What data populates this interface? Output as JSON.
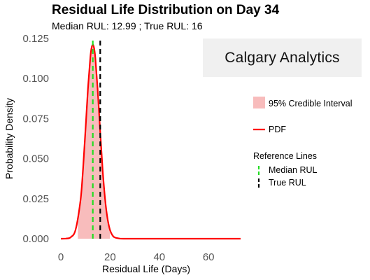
{
  "title": "Residual Life Distribution on Day 34",
  "subtitle": "Median RUL: 12.99 ; True RUL: 16",
  "brand": "Calgary Analytics",
  "chart_data": {
    "type": "area",
    "title": "Residual Life Distribution on Day 34",
    "subtitle": "Median RUL: 12.99 ; True RUL: 16",
    "xlabel": "Residual Life (Days)",
    "ylabel": "Probability Density",
    "xlim": [
      0,
      73
    ],
    "ylim": [
      0,
      0.125
    ],
    "x_ticks": [
      0,
      20,
      40,
      60
    ],
    "x_tick_labels": [
      "0",
      "20",
      "40",
      "60"
    ],
    "y_ticks": [
      0,
      0.025,
      0.05,
      0.075,
      0.1,
      0.125
    ],
    "y_tick_labels": [
      "0.000",
      "0.025",
      "0.050",
      "0.075",
      "0.100",
      "0.125"
    ],
    "grid": false,
    "pdf": {
      "name": "PDF",
      "color": "#ff0000",
      "x": [
        0,
        2,
        4,
        6,
        8,
        9,
        10,
        11,
        12,
        12.5,
        13,
        13.5,
        14,
        15,
        16,
        17,
        18,
        19,
        20,
        21,
        22,
        24,
        26,
        30,
        40,
        50,
        60,
        73
      ],
      "y": [
        0,
        0.0001,
        0.0009,
        0.0057,
        0.0243,
        0.0433,
        0.0678,
        0.0933,
        0.1134,
        0.1193,
        0.1213,
        0.119,
        0.1128,
        0.0918,
        0.0664,
        0.0426,
        0.0241,
        0.0121,
        0.0053,
        0.002,
        0.0007,
        0.0001,
        0,
        0,
        0,
        0,
        0,
        0
      ]
    },
    "credible_interval": {
      "name": "95% Credible Interval",
      "color": "#f8bcbc",
      "x_start": 6.9,
      "x_end": 19.9
    },
    "reference_lines": {
      "title": "Reference Lines",
      "items": [
        {
          "name": "Median RUL",
          "x": 12.99,
          "color": "#22dd22",
          "style": "dashed"
        },
        {
          "name": "True RUL",
          "x": 16,
          "color": "#000000",
          "style": "dashed"
        }
      ]
    },
    "legend_position": "right"
  }
}
